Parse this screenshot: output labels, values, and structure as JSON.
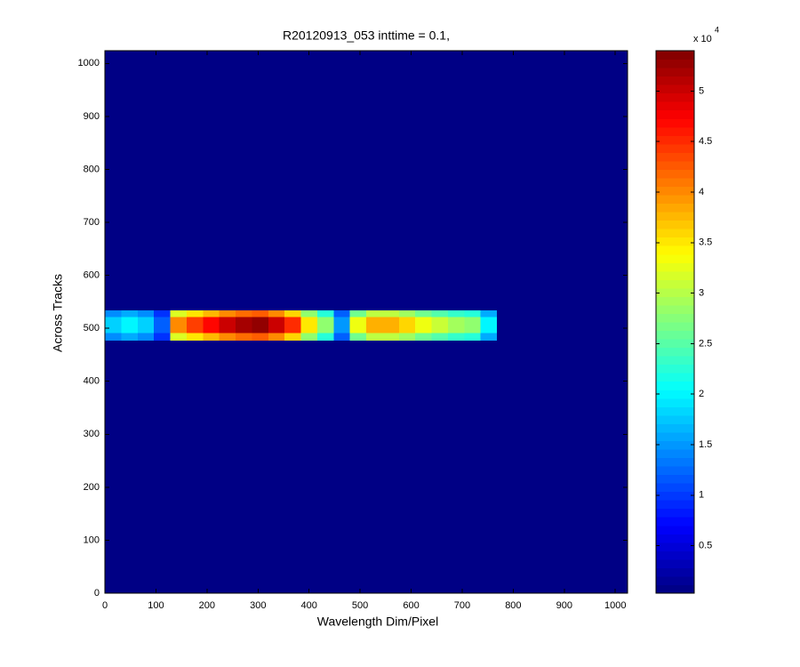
{
  "chart_data": {
    "type": "heatmap",
    "title": "R20120913_053 inttime = 0.1,",
    "xlabel": "Wavelength Dim/Pixel",
    "ylabel": "Across Tracks",
    "xlim": [
      0,
      1024
    ],
    "ylim": [
      0,
      1024
    ],
    "xticks": [
      0,
      100,
      200,
      300,
      400,
      500,
      600,
      700,
      800,
      900,
      1000
    ],
    "yticks": [
      0,
      100,
      200,
      300,
      400,
      500,
      600,
      700,
      800,
      900,
      1000
    ],
    "x_edges": [
      0,
      32,
      64,
      96,
      128,
      160,
      192,
      224,
      256,
      288,
      320,
      352,
      384,
      416,
      448,
      480,
      512,
      544,
      576,
      608,
      640,
      672,
      704,
      736,
      768,
      800,
      832,
      864,
      896,
      928,
      960,
      992,
      1024
    ],
    "y_edges": [
      0,
      478,
      492,
      522,
      535,
      1024
    ],
    "values": [
      [
        600,
        600,
        600,
        600,
        600,
        600,
        600,
        600,
        600,
        600,
        600,
        600,
        600,
        600,
        600,
        600,
        600,
        600,
        600,
        600,
        600,
        600,
        600,
        600,
        600,
        600,
        600,
        600,
        600,
        600,
        600,
        600
      ],
      [
        14400,
        16000,
        14400,
        9600,
        32000,
        35200,
        37600,
        40000,
        41600,
        42400,
        40000,
        36000,
        28000,
        22400,
        12000,
        26400,
        30400,
        30400,
        28800,
        26400,
        24800,
        23200,
        22400,
        16000,
        600,
        600,
        600,
        600,
        600,
        600,
        600,
        600
      ],
      [
        18000,
        20000,
        18000,
        12000,
        40000,
        44000,
        47000,
        50000,
        52000,
        53000,
        50000,
        45000,
        35000,
        28000,
        15000,
        33000,
        38000,
        38000,
        36000,
        33000,
        31000,
        29000,
        28000,
        20000,
        600,
        600,
        600,
        600,
        600,
        600,
        600,
        600
      ],
      [
        14400,
        16000,
        14400,
        9600,
        32000,
        35200,
        37600,
        40000,
        41600,
        42400,
        40000,
        36000,
        28000,
        22400,
        12000,
        26400,
        30400,
        30400,
        28800,
        26400,
        24800,
        23200,
        22400,
        16000,
        600,
        600,
        600,
        600,
        600,
        600,
        600,
        600
      ],
      [
        600,
        600,
        600,
        600,
        600,
        600,
        600,
        600,
        600,
        600,
        600,
        600,
        600,
        600,
        600,
        600,
        600,
        600,
        600,
        600,
        600,
        600,
        600,
        600,
        600,
        600,
        600,
        600,
        600,
        600,
        600,
        600
      ]
    ],
    "colormap": "jet",
    "clim": [
      300,
      54000
    ],
    "colorbar_ticks": [
      {
        "value": 5000,
        "label": "0.5"
      },
      {
        "value": 10000,
        "label": "1"
      },
      {
        "value": 15000,
        "label": "1.5"
      },
      {
        "value": 20000,
        "label": "2"
      },
      {
        "value": 25000,
        "label": "2.5"
      },
      {
        "value": 30000,
        "label": "3"
      },
      {
        "value": 35000,
        "label": "3.5"
      },
      {
        "value": 40000,
        "label": "4"
      },
      {
        "value": 45000,
        "label": "4.5"
      },
      {
        "value": 50000,
        "label": "5"
      }
    ],
    "colorbar_multiplier": "x 10",
    "colorbar_exponent": "4"
  }
}
